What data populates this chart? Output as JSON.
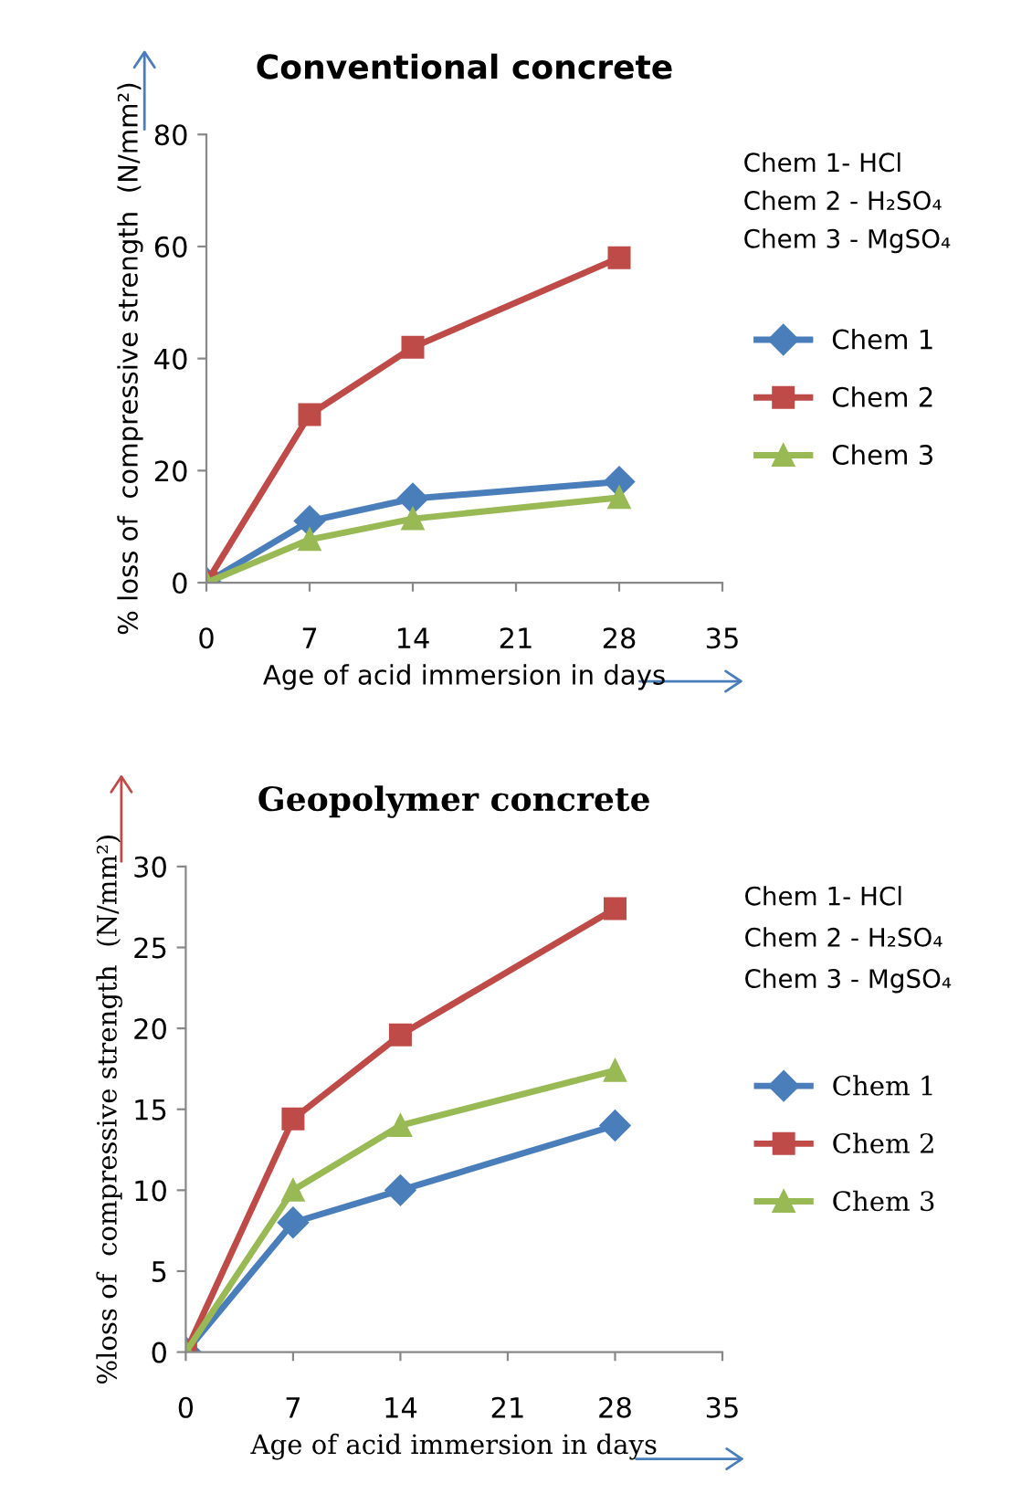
{
  "chart_data": [
    {
      "type": "line",
      "title": "Conventional concrete",
      "xlabel": "Age of acid immersion in days",
      "ylabel": "% loss of  compressive strength  (N/mm²)",
      "x": [
        0,
        7,
        14,
        28
      ],
      "xlim": [
        0,
        35
      ],
      "xticks": [
        0,
        7,
        14,
        21,
        28,
        35
      ],
      "ylim": [
        0,
        80
      ],
      "yticks": [
        0,
        20,
        40,
        60,
        80
      ],
      "grid": false,
      "legend": "right",
      "annotations": [
        "Chem 1- HCl",
        "Chem 2 - H₂SO₄",
        "Chem 3 - MgSO₄"
      ],
      "series": [
        {
          "name": "Chem 1",
          "color": "#4a7ebb",
          "marker": "diamond",
          "values": [
            0,
            11,
            15,
            18
          ]
        },
        {
          "name": "Chem 2",
          "color": "#be4b48",
          "marker": "square",
          "values": [
            0,
            30,
            42,
            58
          ]
        },
        {
          "name": "Chem 3",
          "color": "#98b954",
          "marker": "triangle",
          "values": [
            0,
            7.7,
            11.4,
            15.2
          ]
        }
      ]
    },
    {
      "type": "line",
      "title": "Geopolymer concrete",
      "xlabel": "Age of acid immersion in days",
      "ylabel": "%loss of  compressive strength  (N/mm²)",
      "x": [
        0,
        7,
        14,
        28
      ],
      "xlim": [
        0,
        35
      ],
      "xticks": [
        0,
        7,
        14,
        21,
        28,
        35
      ],
      "ylim": [
        0,
        30
      ],
      "yticks": [
        0,
        5,
        10,
        15,
        20,
        25,
        30
      ],
      "grid": false,
      "legend": "right",
      "annotations": [
        "Chem 1- HCl",
        "Chem 2 - H₂SO₄",
        "Chem 3 - MgSO₄"
      ],
      "series": [
        {
          "name": "Chem 1",
          "color": "#4a7ebb",
          "marker": "diamond",
          "values": [
            0,
            8,
            10,
            14
          ]
        },
        {
          "name": "Chem 2",
          "color": "#be4b48",
          "marker": "square",
          "values": [
            0,
            14.4,
            19.6,
            27.4
          ]
        },
        {
          "name": "Chem 3",
          "color": "#98b954",
          "marker": "triangle",
          "values": [
            0,
            10,
            14,
            17.4
          ]
        }
      ]
    }
  ]
}
